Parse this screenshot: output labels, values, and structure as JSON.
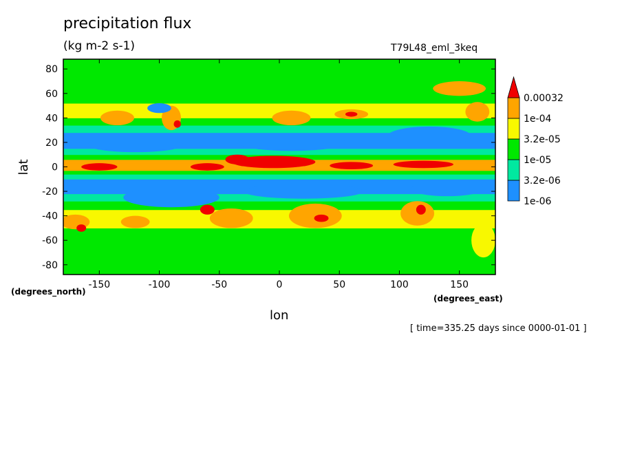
{
  "header": {
    "title": "precipitation flux",
    "units": "(kg m-2 s-1)",
    "experiment": "T79L48_eml_3keq",
    "time": "[ time=335.25 days since 0000-01-01 ]"
  },
  "chart_data": {
    "type": "heatmap",
    "xlabel": "lon",
    "ylabel": "lat",
    "x_units": "(degrees_east)",
    "y_units": "(degrees_north)",
    "xlim": [
      -180,
      180
    ],
    "ylim": [
      -88,
      88
    ],
    "x_ticks": [
      -150,
      -100,
      -50,
      0,
      50,
      100,
      150
    ],
    "x_tick_labels": [
      "-150",
      "-100",
      "-50",
      "0",
      "50",
      "100",
      "150"
    ],
    "y_ticks": [
      -80,
      -60,
      -40,
      -20,
      0,
      20,
      40,
      60,
      80
    ],
    "y_tick_labels": [
      "-80",
      "-60",
      "-40",
      "-20",
      "0",
      "20",
      "40",
      "60",
      "80"
    ],
    "levels": [
      {
        "label": "1e-06",
        "value": 1e-06,
        "color": "#1e90ff"
      },
      {
        "label": "3.2e-06",
        "value": 3.2e-06,
        "color": "#00e8a0"
      },
      {
        "label": "1e-05",
        "value": 1e-05,
        "color": "#00e800"
      },
      {
        "label": "3.2e-05",
        "value": 3.2e-05,
        "color": "#f8f800"
      },
      {
        "label": "1e-04",
        "value": 0.0001,
        "color": "#ffa500"
      },
      {
        "label": "0.00032",
        "value": 0.00032,
        "color": "#f00000"
      }
    ],
    "below_color": "#ffffff",
    "lat_profile": [
      {
        "lat": -88,
        "level": 2
      },
      {
        "lat": -80,
        "level": 2
      },
      {
        "lat": -70,
        "level": 2
      },
      {
        "lat": -60,
        "level": 2
      },
      {
        "lat": -50,
        "level": 3
      },
      {
        "lat": -42,
        "level": 3
      },
      {
        "lat": -35,
        "level": 2
      },
      {
        "lat": -28,
        "level": 1
      },
      {
        "lat": -22,
        "level": 0
      },
      {
        "lat": -16,
        "level": 0
      },
      {
        "lat": -10,
        "level": 1
      },
      {
        "lat": -6,
        "level": 2
      },
      {
        "lat": -3,
        "level": 4
      },
      {
        "lat": 0,
        "level": 4
      },
      {
        "lat": 3,
        "level": 4
      },
      {
        "lat": 6,
        "level": 2
      },
      {
        "lat": 10,
        "level": 1
      },
      {
        "lat": 15,
        "level": 0
      },
      {
        "lat": 22,
        "level": 0
      },
      {
        "lat": 28,
        "level": 1
      },
      {
        "lat": 34,
        "level": 2
      },
      {
        "lat": 40,
        "level": 3
      },
      {
        "lat": 46,
        "level": 3
      },
      {
        "lat": 52,
        "level": 2
      },
      {
        "lat": 60,
        "level": 2
      },
      {
        "lat": 70,
        "level": 2
      },
      {
        "lat": 80,
        "level": 2
      },
      {
        "lat": 88,
        "level": 2
      }
    ],
    "features": [
      {
        "lon": -5,
        "lat": 4,
        "rlon": 35,
        "rlat": 5,
        "level": 5
      },
      {
        "lon": -35,
        "lat": 6,
        "rlon": 10,
        "rlat": 4,
        "level": 5
      },
      {
        "lon": -60,
        "lat": 0,
        "rlon": 14,
        "rlat": 3,
        "level": 5
      },
      {
        "lon": 60,
        "lat": 1,
        "rlon": 18,
        "rlat": 3,
        "level": 5
      },
      {
        "lon": 120,
        "lat": 2,
        "rlon": 25,
        "rlat": 3,
        "level": 5
      },
      {
        "lon": -150,
        "lat": 0,
        "rlon": 15,
        "rlat": 3,
        "level": 5
      },
      {
        "lon": -120,
        "lat": -45,
        "rlon": 12,
        "rlat": 5,
        "level": 4
      },
      {
        "lon": -170,
        "lat": -45,
        "rlon": 12,
        "rlat": 6,
        "level": 4
      },
      {
        "lon": -165,
        "lat": -50,
        "rlon": 4,
        "rlat": 3,
        "level": 5
      },
      {
        "lon": -40,
        "lat": -42,
        "rlon": 18,
        "rlat": 8,
        "level": 4
      },
      {
        "lon": 30,
        "lat": -40,
        "rlon": 22,
        "rlat": 10,
        "level": 4
      },
      {
        "lon": 35,
        "lat": -42,
        "rlon": 6,
        "rlat": 3,
        "level": 5
      },
      {
        "lon": 115,
        "lat": -38,
        "rlon": 14,
        "rlat": 10,
        "level": 4
      },
      {
        "lon": 118,
        "lat": -35,
        "rlon": 4,
        "rlat": 4,
        "level": 5
      },
      {
        "lon": -60,
        "lat": -35,
        "rlon": 6,
        "rlat": 4,
        "level": 5
      },
      {
        "lon": -90,
        "lat": 40,
        "rlon": 8,
        "rlat": 10,
        "level": 4
      },
      {
        "lon": -85,
        "lat": 35,
        "rlon": 3,
        "rlat": 3,
        "level": 5
      },
      {
        "lon": 60,
        "lat": 43,
        "rlon": 14,
        "rlat": 4,
        "level": 4
      },
      {
        "lon": 60,
        "lat": 43,
        "rlon": 5,
        "rlat": 2,
        "level": 5
      },
      {
        "lon": 10,
        "lat": 40,
        "rlon": 16,
        "rlat": 6,
        "level": 4
      },
      {
        "lon": 150,
        "lat": 64,
        "rlon": 22,
        "rlat": 6,
        "level": 4
      },
      {
        "lon": 165,
        "lat": 45,
        "rlon": 10,
        "rlat": 8,
        "level": 4
      },
      {
        "lon": -135,
        "lat": 40,
        "rlon": 14,
        "rlat": 6,
        "level": 4
      },
      {
        "lon": -120,
        "lat": 18,
        "rlon": 40,
        "rlat": 6,
        "level": 0
      },
      {
        "lon": 10,
        "lat": 20,
        "rlon": 45,
        "rlat": 7,
        "level": 0
      },
      {
        "lon": 125,
        "lat": 25,
        "rlon": 35,
        "rlat": 8,
        "level": 0
      },
      {
        "lon": -90,
        "lat": -25,
        "rlon": 40,
        "rlat": 8,
        "level": 0
      },
      {
        "lon": 20,
        "lat": -20,
        "rlon": 50,
        "rlat": 6,
        "level": 0
      },
      {
        "lon": 140,
        "lat": -18,
        "rlon": 30,
        "rlat": 6,
        "level": 0
      },
      {
        "lon": -100,
        "lat": 48,
        "rlon": 10,
        "rlat": 4,
        "level": 0
      },
      {
        "lon": 170,
        "lat": -60,
        "rlon": 10,
        "rlat": 14,
        "level": 3
      }
    ]
  }
}
